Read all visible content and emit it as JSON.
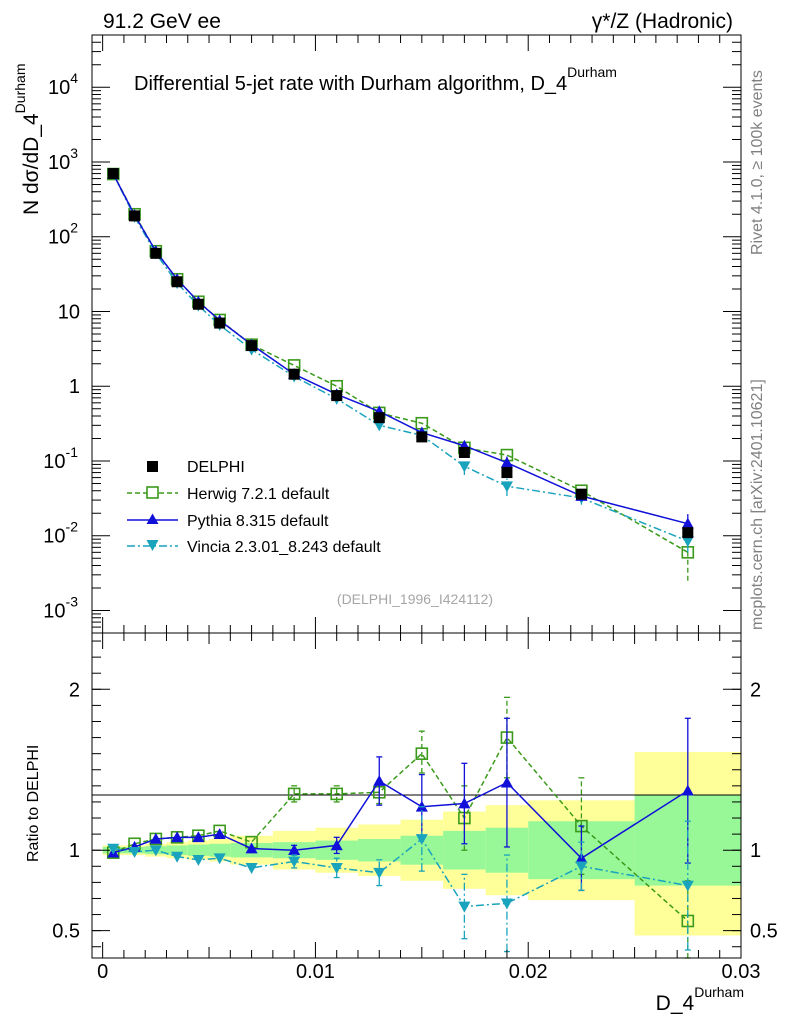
{
  "header": {
    "energy": "91.2 GeV ee",
    "process": "γ*/Z (Hadronic)",
    "rivet": "Rivet 4.1.0, ≥ 100k events",
    "site": "mcplots.cern.ch [arXiv:2401.10621]"
  },
  "colors": {
    "data": "#000000",
    "herwig": "#3a9a1a",
    "pythia": "#1010d8",
    "vincia": "#19a3bd",
    "band_inner": "#98f898",
    "band_outer": "#ffff99"
  },
  "chart_data": [
    {
      "type": "line",
      "panel": "main",
      "title": "Differential 5-jet rate with Durham algorithm, D_4",
      "title_sup": "Durham",
      "ylabel": "N  dσ/dD_4",
      "ylabel_sup": "Durham",
      "xlabel": "D_4",
      "xlabel_sup": "Durham",
      "yscale": "log",
      "xlim": [
        -0.0005,
        0.03
      ],
      "ylim": [
        0.0005,
        50000
      ],
      "y_ticks": [
        {
          "value": 0.001,
          "base": "10",
          "exp": "-3"
        },
        {
          "value": 0.01,
          "base": "10",
          "exp": "-2"
        },
        {
          "value": 0.1,
          "base": "10",
          "exp": "-1"
        },
        {
          "value": 1,
          "base": "1",
          "exp": ""
        },
        {
          "value": 10,
          "base": "10",
          "exp": ""
        },
        {
          "value": 100,
          "base": "10",
          "exp": "2"
        },
        {
          "value": 1000,
          "base": "10",
          "exp": "3"
        },
        {
          "value": 10000,
          "base": "10",
          "exp": "4"
        }
      ],
      "watermark": "(DELPHI_1996_I424112)",
      "legend_position": "bottom-left",
      "x": [
        0.0005,
        0.0015,
        0.0025,
        0.0035,
        0.0045,
        0.0055,
        0.007,
        0.009,
        0.011,
        0.013,
        0.015,
        0.017,
        0.019,
        0.0225,
        0.0275
      ],
      "series": [
        {
          "name": "DELPHI",
          "key": "data",
          "style": "data",
          "values": [
            700,
            190,
            60,
            25,
            12.5,
            7,
            3.5,
            1.45,
            0.75,
            0.38,
            0.21,
            0.13,
            0.07,
            0.036,
            0.011
          ]
        },
        {
          "name": "Herwig 7.2.1 default",
          "key": "herwig",
          "style": "open-square-dashed",
          "values": [
            690,
            200,
            64,
            27,
            13.5,
            7.7,
            3.6,
            1.9,
            1.0,
            0.44,
            0.32,
            0.15,
            0.12,
            0.04,
            0.006
          ],
          "err_low": [
            0,
            0,
            0,
            0,
            0,
            0,
            0,
            0,
            0,
            0,
            0,
            0,
            0,
            0,
            0.0035
          ],
          "err_high": [
            0,
            0,
            0,
            0,
            0,
            0,
            0,
            0,
            0,
            0,
            0,
            0,
            0,
            0,
            0.002
          ]
        },
        {
          "name": "Pythia 8.315 default",
          "key": "pythia",
          "style": "triangle-up-solid",
          "values": [
            690,
            195,
            64,
            27,
            13.5,
            7.6,
            3.6,
            1.45,
            0.78,
            0.46,
            0.24,
            0.16,
            0.095,
            0.034,
            0.0145
          ],
          "err_low": [
            0,
            0,
            0,
            0,
            0,
            0,
            0,
            0,
            0,
            0,
            0,
            0.02,
            0.02,
            0.005,
            0.004
          ],
          "err_high": [
            0,
            0,
            0,
            0,
            0,
            0,
            0,
            0,
            0,
            0,
            0,
            0.02,
            0.02,
            0.005,
            0.005
          ]
        },
        {
          "name": "Vincia 2.3.01_8.243 default",
          "key": "vincia",
          "style": "triangle-down-dashdot",
          "values": [
            690,
            185,
            60,
            24,
            12,
            6.6,
            3.1,
            1.35,
            0.68,
            0.3,
            0.22,
            0.085,
            0.046,
            0.032,
            0.0085
          ],
          "err_low": [
            0,
            0,
            0,
            0,
            0,
            0,
            0,
            0,
            0,
            0,
            0.02,
            0.02,
            0.012,
            0.006,
            0.0025
          ],
          "err_high": [
            0,
            0,
            0,
            0,
            0,
            0,
            0,
            0,
            0,
            0,
            0.02,
            0.02,
            0.012,
            0.006,
            0.0025
          ]
        }
      ]
    },
    {
      "type": "line",
      "panel": "ratio",
      "ylabel": "Ratio to DELPHI",
      "xlabel": "D_4",
      "xlabel_sup": "Durham",
      "xlim": [
        -0.0005,
        0.03
      ],
      "ylim": [
        0.33,
        2.35
      ],
      "x_ticks": [
        0,
        0.01,
        0.02,
        0.03
      ],
      "x_tick_labels": [
        "0",
        "0.01",
        "0.02",
        "0.03"
      ],
      "y_ticks": [
        0.5,
        1,
        2
      ],
      "y_tick_labels": [
        "0.5",
        "1",
        "2"
      ],
      "bins": [
        0,
        0.001,
        0.002,
        0.003,
        0.004,
        0.005,
        0.006,
        0.008,
        0.01,
        0.012,
        0.014,
        0.016,
        0.018,
        0.02,
        0.025,
        0.03
      ],
      "band_inner": [
        [
          0.98,
          1.02
        ],
        [
          0.98,
          1.02
        ],
        [
          0.975,
          1.025
        ],
        [
          0.97,
          1.03
        ],
        [
          0.965,
          1.035
        ],
        [
          0.96,
          1.04
        ],
        [
          0.955,
          1.045
        ],
        [
          0.95,
          1.05
        ],
        [
          0.94,
          1.06
        ],
        [
          0.93,
          1.07
        ],
        [
          0.91,
          1.09
        ],
        [
          0.88,
          1.12
        ],
        [
          0.86,
          1.14
        ],
        [
          0.82,
          1.18
        ],
        [
          0.78,
          1.34
        ]
      ],
      "band_outer": [
        [
          0.97,
          1.03
        ],
        [
          0.97,
          1.03
        ],
        [
          0.96,
          1.04
        ],
        [
          0.95,
          1.05
        ],
        [
          0.94,
          1.06
        ],
        [
          0.93,
          1.07
        ],
        [
          0.91,
          1.09
        ],
        [
          0.88,
          1.12
        ],
        [
          0.86,
          1.14
        ],
        [
          0.84,
          1.16
        ],
        [
          0.81,
          1.19
        ],
        [
          0.76,
          1.24
        ],
        [
          0.72,
          1.28
        ],
        [
          0.69,
          1.31
        ],
        [
          0.47,
          1.61
        ]
      ],
      "x": [
        0.0005,
        0.0015,
        0.0025,
        0.0035,
        0.0045,
        0.0055,
        0.007,
        0.009,
        0.011,
        0.013,
        0.015,
        0.017,
        0.019,
        0.0225,
        0.0275
      ],
      "series": [
        {
          "name": "Herwig 7.2.1 default",
          "key": "herwig",
          "style": "open-square-dashed",
          "values": [
            0.985,
            1.04,
            1.07,
            1.08,
            1.09,
            1.12,
            1.05,
            1.35,
            1.35,
            1.36,
            1.6,
            1.2,
            1.7,
            1.15,
            0.56
          ],
          "err_low": [
            0,
            0,
            0,
            0,
            0,
            0,
            0,
            0.05,
            0.05,
            0.07,
            0.12,
            0.2,
            0.25,
            0.3,
            0.25
          ],
          "err_high": [
            0,
            0,
            0,
            0,
            0,
            0,
            0,
            0.05,
            0.05,
            0.07,
            0.14,
            0.2,
            0.25,
            0.3,
            0.25
          ]
        },
        {
          "name": "Pythia 8.315 default",
          "key": "pythia",
          "style": "triangle-up-solid",
          "values": [
            0.985,
            1.02,
            1.07,
            1.08,
            1.08,
            1.1,
            1.01,
            1.0,
            1.03,
            1.43,
            1.27,
            1.29,
            1.42,
            0.95,
            1.37
          ],
          "err_low": [
            0,
            0,
            0,
            0,
            0,
            0,
            0,
            0.03,
            0.05,
            0.15,
            0.2,
            0.25,
            0.4,
            0.2,
            0.45
          ],
          "err_high": [
            0,
            0,
            0,
            0,
            0,
            0,
            0,
            0.03,
            0.05,
            0.15,
            0.2,
            0.25,
            0.4,
            0.2,
            0.45
          ]
        },
        {
          "name": "Vincia 2.3.01_8.243 default",
          "key": "vincia",
          "style": "triangle-down-dashdot",
          "values": [
            1.01,
            0.99,
            1.0,
            0.96,
            0.94,
            0.95,
            0.89,
            0.93,
            0.89,
            0.86,
            1.07,
            0.65,
            0.67,
            0.9,
            0.78
          ],
          "err_low": [
            0,
            0,
            0,
            0,
            0,
            0,
            0,
            0.04,
            0.06,
            0.08,
            0.2,
            0.2,
            0.3,
            0.15,
            0.4
          ],
          "err_high": [
            0,
            0,
            0,
            0,
            0,
            0,
            0,
            0.04,
            0.06,
            0.08,
            0.2,
            0.2,
            0.3,
            0.15,
            0.4
          ]
        }
      ]
    }
  ]
}
